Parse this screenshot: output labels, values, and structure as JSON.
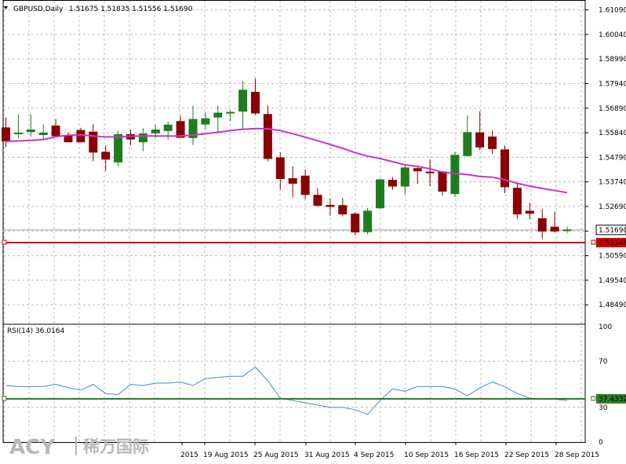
{
  "header": {
    "symbol_label": "GBPUSD,Daily",
    "ohlc": "1.51675 1.51835 1.51556 1.51690",
    "rsi_label": "RSI(14) 36.0164"
  },
  "watermark": {
    "brand": "ACY",
    "cn": "稀万国际"
  },
  "colors": {
    "bull": "#1e7d1e",
    "bear": "#8b0000",
    "ma": "#cc33cc",
    "rsi": "#3a8fd0",
    "rsi_level": "#2a7d2a",
    "level_line": "#cc0000",
    "grid": "#bdbdbd"
  },
  "chart_data": [
    {
      "type": "candlestick",
      "title": "GBPUSD,Daily",
      "ylim": [
        1.4776,
        1.6151
      ],
      "y_ticks": [
        "1.61090",
        "1.60040",
        "1.58990",
        "1.57940",
        "1.56890",
        "1.55840",
        "1.54790",
        "1.53740",
        "1.52690",
        "1.51640",
        "1.50590",
        "1.49540",
        "1.48490"
      ],
      "x_ticks": [
        "2015",
        "19 Aug 2015",
        "25 Aug 2015",
        "31 Aug 2015",
        "4 Sep 2015",
        "10 Sep 2015",
        "16 Sep 2015",
        "22 Sep 2015",
        "28 Sep 2015"
      ],
      "current_price_label": "1.51690",
      "level_line": {
        "value": 1.51146,
        "label": "1.51146"
      },
      "candles": [
        {
          "o": 1.5605,
          "h": 1.565,
          "l": 1.5523,
          "c": 1.5549
        },
        {
          "o": 1.558,
          "h": 1.5663,
          "l": 1.556,
          "c": 1.5583
        },
        {
          "o": 1.5589,
          "h": 1.5663,
          "l": 1.5567,
          "c": 1.5596
        },
        {
          "o": 1.5576,
          "h": 1.562,
          "l": 1.5556,
          "c": 1.5583
        },
        {
          "o": 1.5613,
          "h": 1.5642,
          "l": 1.5571,
          "c": 1.5571
        },
        {
          "o": 1.5571,
          "h": 1.5586,
          "l": 1.5545,
          "c": 1.5545
        },
        {
          "o": 1.5594,
          "h": 1.5605,
          "l": 1.5542,
          "c": 1.5545
        },
        {
          "o": 1.5587,
          "h": 1.562,
          "l": 1.5462,
          "c": 1.5501
        },
        {
          "o": 1.5501,
          "h": 1.553,
          "l": 1.542,
          "c": 1.5471
        },
        {
          "o": 1.5459,
          "h": 1.5591,
          "l": 1.544,
          "c": 1.5576
        },
        {
          "o": 1.5576,
          "h": 1.5598,
          "l": 1.553,
          "c": 1.5557
        },
        {
          "o": 1.5545,
          "h": 1.5604,
          "l": 1.5505,
          "c": 1.5579
        },
        {
          "o": 1.5583,
          "h": 1.5617,
          "l": 1.5562,
          "c": 1.5596
        },
        {
          "o": 1.5593,
          "h": 1.5632,
          "l": 1.5555,
          "c": 1.5617
        },
        {
          "o": 1.5632,
          "h": 1.5656,
          "l": 1.5568,
          "c": 1.5564
        },
        {
          "o": 1.5563,
          "h": 1.57,
          "l": 1.5532,
          "c": 1.5641
        },
        {
          "o": 1.5621,
          "h": 1.5673,
          "l": 1.5599,
          "c": 1.5644
        },
        {
          "o": 1.5651,
          "h": 1.57,
          "l": 1.558,
          "c": 1.5668
        },
        {
          "o": 1.5668,
          "h": 1.568,
          "l": 1.5633,
          "c": 1.5671
        },
        {
          "o": 1.5676,
          "h": 1.5805,
          "l": 1.56,
          "c": 1.5766
        },
        {
          "o": 1.5757,
          "h": 1.5816,
          "l": 1.566,
          "c": 1.5668
        },
        {
          "o": 1.5662,
          "h": 1.57,
          "l": 1.5462,
          "c": 1.5474
        },
        {
          "o": 1.5477,
          "h": 1.55,
          "l": 1.534,
          "c": 1.5388
        },
        {
          "o": 1.5388,
          "h": 1.544,
          "l": 1.5308,
          "c": 1.5368
        },
        {
          "o": 1.5399,
          "h": 1.5427,
          "l": 1.53,
          "c": 1.532
        },
        {
          "o": 1.5317,
          "h": 1.5347,
          "l": 1.5266,
          "c": 1.5274
        },
        {
          "o": 1.5274,
          "h": 1.5305,
          "l": 1.523,
          "c": 1.5269
        },
        {
          "o": 1.5273,
          "h": 1.5306,
          "l": 1.5227,
          "c": 1.5237
        },
        {
          "o": 1.5237,
          "h": 1.5245,
          "l": 1.5145,
          "c": 1.516
        },
        {
          "o": 1.5161,
          "h": 1.5262,
          "l": 1.515,
          "c": 1.5249
        },
        {
          "o": 1.5263,
          "h": 1.5389,
          "l": 1.526,
          "c": 1.5383
        },
        {
          "o": 1.5381,
          "h": 1.5395,
          "l": 1.534,
          "c": 1.5356
        },
        {
          "o": 1.5356,
          "h": 1.545,
          "l": 1.5322,
          "c": 1.5434
        },
        {
          "o": 1.5431,
          "h": 1.5443,
          "l": 1.5365,
          "c": 1.5421
        },
        {
          "o": 1.5416,
          "h": 1.547,
          "l": 1.5356,
          "c": 1.5414
        },
        {
          "o": 1.5417,
          "h": 1.542,
          "l": 1.5316,
          "c": 1.5334
        },
        {
          "o": 1.5324,
          "h": 1.5502,
          "l": 1.531,
          "c": 1.5488
        },
        {
          "o": 1.5486,
          "h": 1.5658,
          "l": 1.5482,
          "c": 1.5585
        },
        {
          "o": 1.5584,
          "h": 1.5676,
          "l": 1.551,
          "c": 1.5523
        },
        {
          "o": 1.5566,
          "h": 1.5594,
          "l": 1.5494,
          "c": 1.5516
        },
        {
          "o": 1.5511,
          "h": 1.553,
          "l": 1.5326,
          "c": 1.5353
        },
        {
          "o": 1.5347,
          "h": 1.5369,
          "l": 1.5217,
          "c": 1.5237
        },
        {
          "o": 1.5249,
          "h": 1.5285,
          "l": 1.5214,
          "c": 1.524
        },
        {
          "o": 1.5217,
          "h": 1.5258,
          "l": 1.513,
          "c": 1.5164
        },
        {
          "o": 1.5181,
          "h": 1.5247,
          "l": 1.5158,
          "c": 1.5164
        },
        {
          "o": 1.5168,
          "h": 1.5183,
          "l": 1.5156,
          "c": 1.5169
        }
      ],
      "ma": [
        1.5547,
        1.5549,
        1.5551,
        1.5555,
        1.5567,
        1.5573,
        1.5575,
        1.557,
        1.5566,
        1.5566,
        1.5569,
        1.557,
        1.557,
        1.557,
        1.557,
        1.5574,
        1.558,
        1.5586,
        1.5593,
        1.5599,
        1.5602,
        1.5601,
        1.5593,
        1.558,
        1.5565,
        1.555,
        1.5534,
        1.5517,
        1.5499,
        1.5484,
        1.5474,
        1.546,
        1.5447,
        1.544,
        1.543,
        1.5416,
        1.541,
        1.5405,
        1.5397,
        1.5394,
        1.5383,
        1.5368,
        1.5356,
        1.5346,
        1.5337,
        1.5328
      ]
    },
    {
      "type": "line",
      "title": "RSI(14) 36.0164",
      "ylim": [
        0,
        100
      ],
      "y_ticks": [
        "100",
        "70",
        "30",
        "0"
      ],
      "level": {
        "value": 37.4332,
        "label": "37.4332"
      },
      "values": [
        49,
        48,
        48,
        48,
        50,
        47,
        45,
        50,
        42,
        41,
        50,
        49,
        51,
        51,
        52,
        49,
        55,
        56,
        57,
        57,
        65,
        53,
        38,
        36,
        34,
        32,
        30,
        30,
        28,
        24,
        36,
        46,
        44,
        48,
        48,
        48,
        46,
        40,
        47,
        52,
        48,
        42,
        38,
        37,
        37,
        36
      ]
    }
  ]
}
